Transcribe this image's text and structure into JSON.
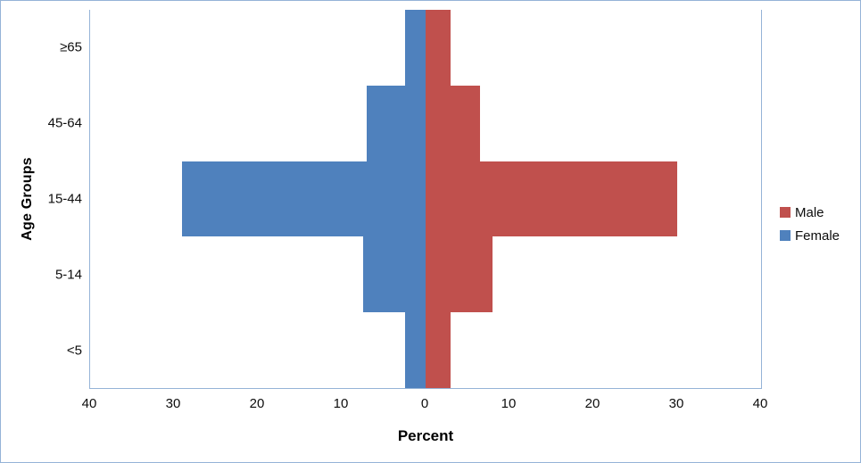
{
  "chart_data": {
    "type": "bar",
    "variant": "population-pyramid",
    "title": "",
    "xlabel": "Percent",
    "ylabel": "Age Groups",
    "categories": [
      "<5",
      "5-14",
      "15-44",
      "45-64",
      "≥65"
    ],
    "series": [
      {
        "name": "Male",
        "side": "right",
        "color": "#C0504D",
        "values": [
          3,
          8,
          30,
          6.5,
          3
        ]
      },
      {
        "name": "Female",
        "side": "left",
        "color": "#4F81BD",
        "values": [
          2.5,
          7.5,
          29,
          7,
          2.5
        ]
      }
    ],
    "x_axis": {
      "tick_labels": [
        "40",
        "30",
        "20",
        "10",
        "0",
        "10",
        "20",
        "30",
        "40"
      ],
      "tick_values": [
        -40,
        -30,
        -20,
        -10,
        0,
        10,
        20,
        30,
        40
      ],
      "range": [
        -40,
        40
      ],
      "grid": false
    },
    "legend": {
      "position": "right",
      "entries": [
        "Male",
        "Female"
      ]
    },
    "colors": {
      "male": "#C0504D",
      "female": "#4F81BD",
      "axis_line": "#95B3D7",
      "outer_border": "#95B3D7",
      "text": "#0d0d0d"
    }
  }
}
